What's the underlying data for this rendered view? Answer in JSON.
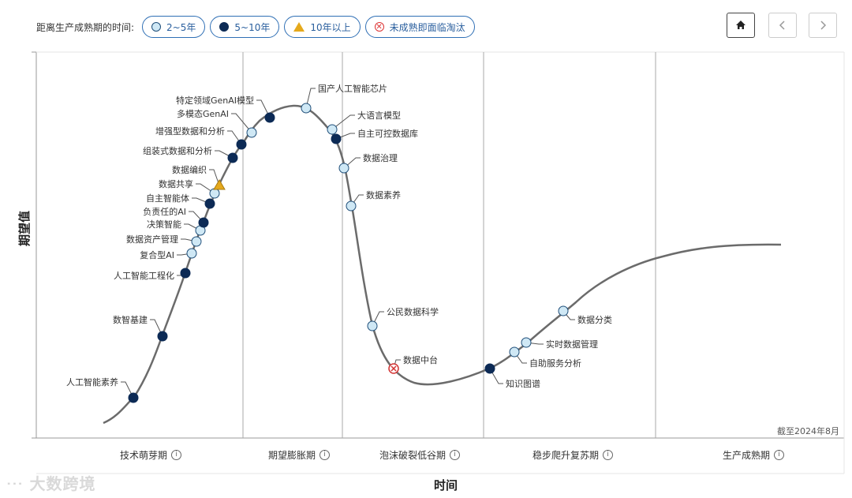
{
  "legend": {
    "title": "距离生产成熟期的时间:",
    "items": [
      {
        "label": "2~5年",
        "marker": "light-circle"
      },
      {
        "label": "5~10年",
        "marker": "dark-circle"
      },
      {
        "label": "10年以上",
        "marker": "triangle"
      },
      {
        "label": "未成熟即面临淘汰",
        "marker": "x-circle"
      }
    ]
  },
  "nav": {
    "home_icon": "home-icon",
    "prev_icon": "chevron-left-icon",
    "next_icon": "chevron-right-icon"
  },
  "colors": {
    "light": "#cfe8f5",
    "dark": "#0c2a55",
    "triangle": "#e5a91c",
    "obsolete": "#d33333",
    "curve": "#666666",
    "accent": "#2f6fb5"
  },
  "watermark": "大数跨境",
  "chart_data": {
    "type": "scatter",
    "title": "",
    "xlabel": "时间",
    "ylabel": "期望值",
    "as_of": "截至2024年8月",
    "grid": false,
    "phases": [
      {
        "label": "技术萌芽期"
      },
      {
        "label": "期望膨胀期"
      },
      {
        "label": "泡沫破裂低谷期"
      },
      {
        "label": "稳步爬升复苏期"
      },
      {
        "label": "生产成熟期"
      }
    ],
    "points": [
      {
        "label": "人工智能素养",
        "maturity": "5~10年"
      },
      {
        "label": "数智基建",
        "maturity": "5~10年"
      },
      {
        "label": "人工智能工程化",
        "maturity": "5~10年"
      },
      {
        "label": "复合型AI",
        "maturity": "2~5年"
      },
      {
        "label": "数据资产管理",
        "maturity": "2~5年"
      },
      {
        "label": "决策智能",
        "maturity": "2~5年"
      },
      {
        "label": "负责任的AI",
        "maturity": "5~10年"
      },
      {
        "label": "自主智能体",
        "maturity": "5~10年"
      },
      {
        "label": "数据共享",
        "maturity": "2~5年"
      },
      {
        "label": "数据编织",
        "maturity": "10年以上"
      },
      {
        "label": "组装式数据和分析",
        "maturity": "5~10年"
      },
      {
        "label": "增强型数据和分析",
        "maturity": "5~10年"
      },
      {
        "label": "多模态GenAI",
        "maturity": "2~5年"
      },
      {
        "label": "特定领域GenAI模型",
        "maturity": "5~10年"
      },
      {
        "label": "国产人工智能芯片",
        "maturity": "2~5年"
      },
      {
        "label": "大语言模型",
        "maturity": "2~5年"
      },
      {
        "label": "自主可控数据库",
        "maturity": "5~10年"
      },
      {
        "label": "数据治理",
        "maturity": "2~5年"
      },
      {
        "label": "数据素养",
        "maturity": "2~5年"
      },
      {
        "label": "公民数据科学",
        "maturity": "2~5年"
      },
      {
        "label": "数据中台",
        "maturity": "未成熟即面临淘汰"
      },
      {
        "label": "知识图谱",
        "maturity": "5~10年"
      },
      {
        "label": "自助服务分析",
        "maturity": "2~5年"
      },
      {
        "label": "实时数据管理",
        "maturity": "2~5年"
      },
      {
        "label": "数据分类",
        "maturity": "2~5年"
      }
    ]
  }
}
